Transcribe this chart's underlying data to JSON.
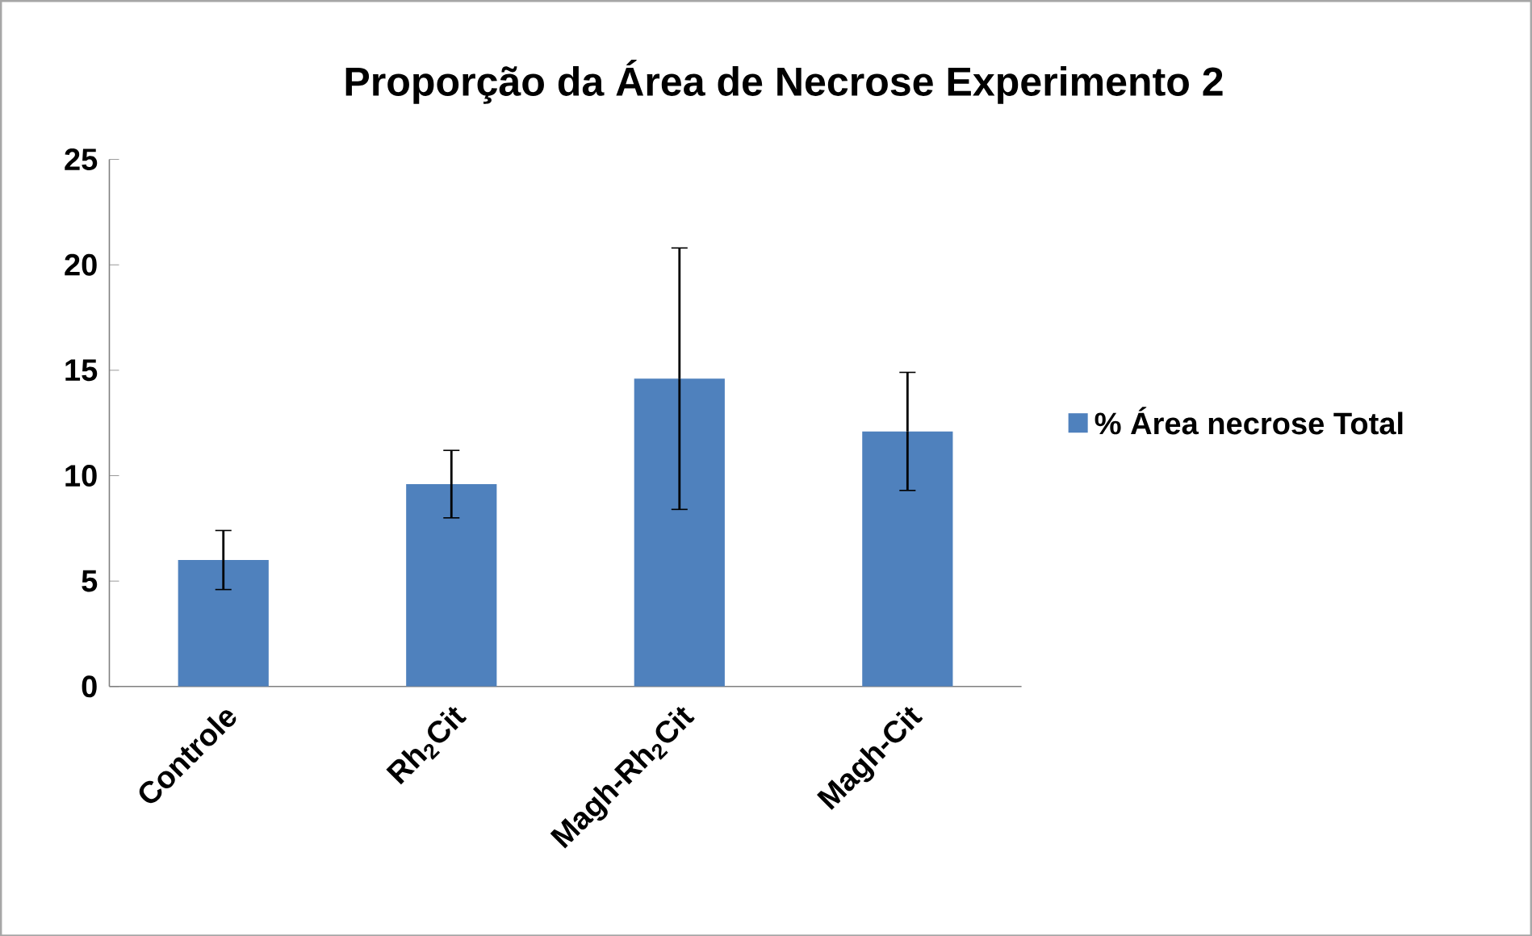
{
  "chart_data": {
    "type": "bar",
    "title": "Proporção da Área de Necrose Experimento 2",
    "categories": [
      "Controle",
      "Rh$_{2}$Cit",
      "Magh-Rh$_{2}$Cit",
      "Magh-Cit"
    ],
    "series": [
      {
        "name": "% Área necrose Total",
        "color": "#4f81bd",
        "values": [
          6.0,
          9.6,
          14.6,
          12.1
        ],
        "errors": [
          1.4,
          1.6,
          6.2,
          2.8
        ]
      }
    ],
    "ylim": [
      0,
      25
    ],
    "yticks": [
      0,
      5,
      10,
      15,
      20,
      25
    ],
    "grid": false,
    "legend": "right"
  }
}
